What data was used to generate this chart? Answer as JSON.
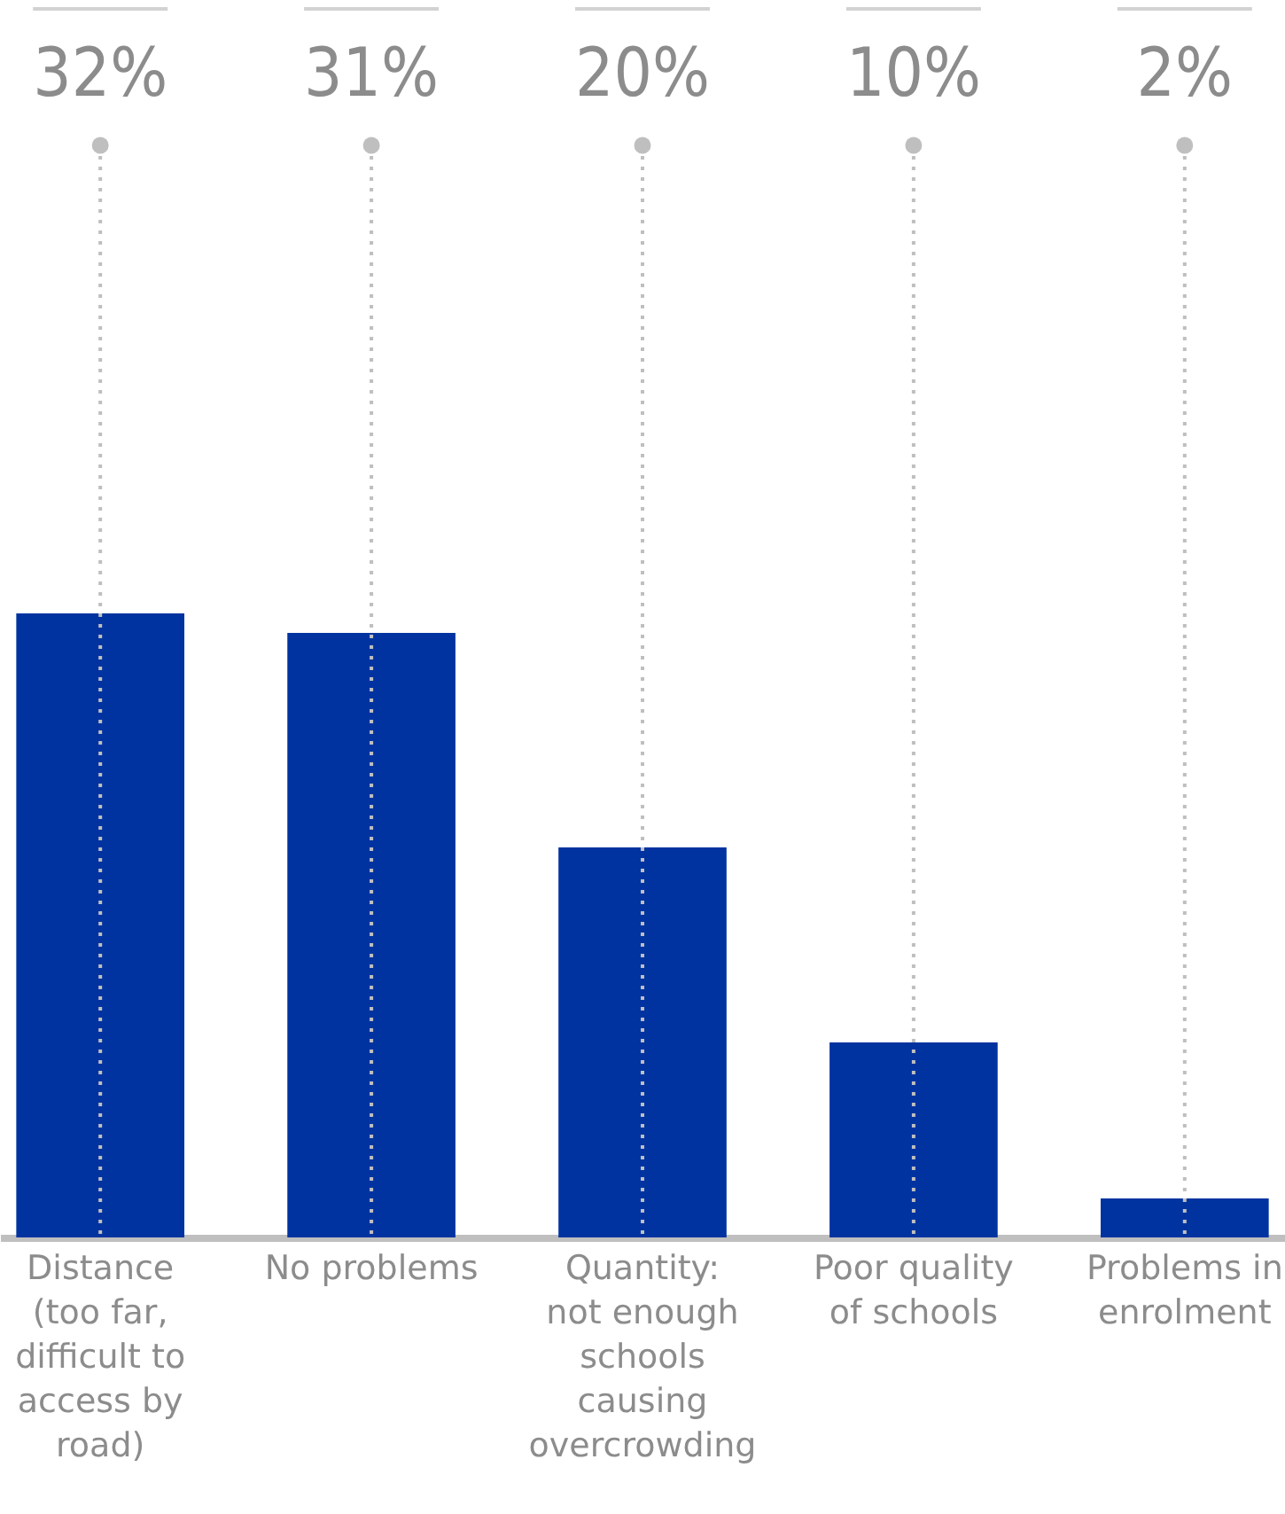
{
  "chart_data": {
    "type": "bar",
    "categories": [
      "Distance (too far, difficult to access by road)",
      "No problems",
      "Quantity: not enough schools causing overcrowding",
      "Poor quality of schools",
      "Problems in enrolment"
    ],
    "values": [
      32,
      31,
      20,
      10,
      2
    ],
    "value_labels": [
      "32%",
      "31%",
      "20%",
      "10%",
      "2%"
    ],
    "color": "#0033a0",
    "grid": "x"
  }
}
